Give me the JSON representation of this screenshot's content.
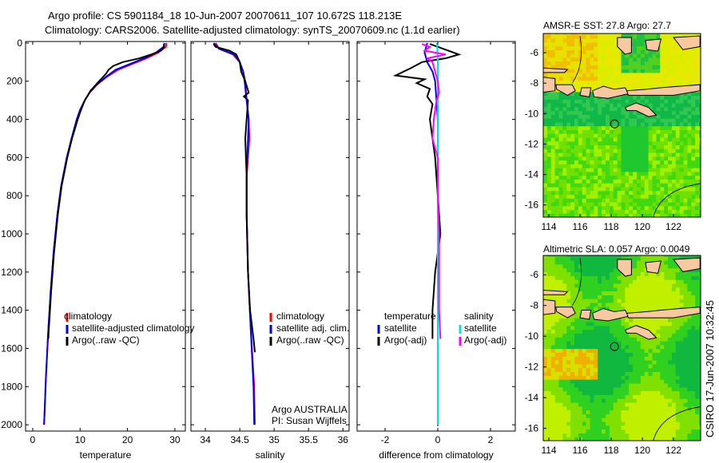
{
  "title_line1": "Argo profile: CS 5901184_18 10-Jun-2007 20070611_107 10.672S 118.213E",
  "title_line2": "Climatology: CARS2006. Satellite-adjusted climatology: synTS_20070609.nc (1.1d earlier)",
  "side_stamp": "CSIRO 17-Jun-2007 10:32:45",
  "colors": {
    "climatology": "#ff0000",
    "satellite": "#0000ff",
    "argo": "#000000",
    "sal_satellite": "#00e0e0",
    "sal_argo": "#ff00ff",
    "land": "#f8c8a0"
  },
  "chart_data": [
    {
      "type": "line",
      "id": "temperature",
      "xlabel": "temperature",
      "ylabel": "",
      "xlim": [
        -1.5,
        32.2
      ],
      "ylim": [
        -8,
        2033
      ],
      "y_reversed": true,
      "xticks": [
        0,
        10,
        20,
        30
      ],
      "yticks": [
        0,
        200,
        400,
        600,
        800,
        1000,
        1200,
        1400,
        1600,
        1800,
        2000
      ],
      "show_ytick_labels": true,
      "legend": [
        "climatology",
        "satellite-adjusted climatology",
        "Argo(..raw -QC)"
      ],
      "series": [
        {
          "name": "climatology",
          "color": "#ff0000",
          "y": [
            0,
            20,
            50,
            80,
            110,
            140,
            180,
            220,
            260,
            300,
            350,
            400,
            500,
            600,
            750,
            900,
            1100,
            1300,
            1500,
            1750,
            2000
          ],
          "x": [
            28.2,
            28.1,
            26.5,
            24,
            21,
            18,
            15.5,
            13.5,
            12,
            11,
            10,
            9.3,
            8.2,
            7.2,
            6,
            5.2,
            4.4,
            3.8,
            3.3,
            2.8,
            2.4
          ]
        },
        {
          "name": "satellite-adjusted climatology",
          "color": "#0000ff",
          "y": [
            0,
            20,
            50,
            80,
            110,
            140,
            180,
            220,
            260,
            300,
            350,
            400,
            500,
            600,
            750,
            900,
            1100,
            1300,
            1500,
            1750,
            2000
          ],
          "x": [
            27.8,
            27.6,
            26,
            23.5,
            20.5,
            17.5,
            15.3,
            13.4,
            12,
            11,
            10,
            9.3,
            8.2,
            7.2,
            6,
            5.2,
            4.4,
            3.8,
            3.3,
            2.8,
            2.4
          ]
        },
        {
          "name": "Argo(..raw -QC)",
          "color": "#000000",
          "y": [
            5,
            20,
            40,
            60,
            80,
            100,
            120,
            140,
            160,
            200,
            250,
            300,
            350,
            400,
            500,
            600,
            750,
            900,
            1100,
            1300,
            1500,
            1550
          ],
          "x": [
            27.7,
            27.7,
            27,
            25,
            22.5,
            19,
            17,
            16,
            15.5,
            14,
            12.2,
            11,
            10.2,
            9.5,
            8.3,
            7.3,
            6.1,
            5.3,
            4.5,
            3.9,
            3.4,
            3.3
          ]
        }
      ]
    },
    {
      "type": "line",
      "id": "salinity",
      "xlabel": "salinity",
      "xlim": [
        33.79,
        36.09
      ],
      "ylim": [
        -8,
        2033
      ],
      "y_reversed": true,
      "xticks": [
        34,
        34.5,
        35,
        35.5,
        36
      ],
      "yticks": [
        0,
        200,
        400,
        600,
        800,
        1000,
        1200,
        1400,
        1600,
        1800,
        2000
      ],
      "show_ytick_labels": false,
      "legend": [
        "climatology",
        "satellite adj. clim.",
        "Argo(..raw -QC)"
      ],
      "annotation": [
        "Argo AUSTRALIA",
        "PI: Susan Wijffels"
      ],
      "series": [
        {
          "name": "climatology",
          "color": "#ff0000",
          "y": [
            0,
            30,
            60,
            100,
            150,
            200,
            300,
            400,
            500,
            700,
            900,
            1200,
            1500,
            1800,
            2000
          ],
          "x": [
            34.15,
            34.2,
            34.4,
            34.5,
            34.55,
            34.58,
            34.6,
            34.63,
            34.64,
            34.6,
            34.6,
            34.62,
            34.66,
            34.71,
            34.72
          ]
        },
        {
          "name": "satellite adj. clim.",
          "color": "#0000ff",
          "y": [
            0,
            30,
            60,
            100,
            150,
            200,
            300,
            400,
            500,
            700,
            900,
            1200,
            1500,
            1800,
            2000
          ],
          "x": [
            34.12,
            34.2,
            34.42,
            34.5,
            34.55,
            34.57,
            34.6,
            34.63,
            34.62,
            34.6,
            34.6,
            34.62,
            34.66,
            34.7,
            34.71
          ]
        },
        {
          "name": "Argo(..raw -QC)",
          "color": "#000000",
          "y": [
            5,
            20,
            40,
            60,
            100,
            150,
            200,
            260,
            280,
            300,
            400,
            500,
            700,
            900,
            1200,
            1400,
            1550,
            1620
          ],
          "x": [
            34.12,
            34.15,
            34.35,
            34.45,
            34.5,
            34.52,
            34.58,
            34.63,
            34.56,
            34.62,
            34.6,
            34.58,
            34.6,
            34.6,
            34.62,
            34.65,
            34.7,
            34.72
          ]
        }
      ]
    },
    {
      "type": "line",
      "id": "difference",
      "xlabel": "difference from climatology",
      "xlim": [
        -3.06,
        2.94
      ],
      "ylim": [
        -8,
        2033
      ],
      "y_reversed": true,
      "xticks": [
        -2,
        0,
        2
      ],
      "yticks": [
        0,
        200,
        400,
        600,
        800,
        1000,
        1200,
        1400,
        1600,
        1800,
        2000
      ],
      "show_ytick_labels": false,
      "legend_left": [
        "temperature",
        "satellite",
        "Argo(-adj)"
      ],
      "legend_right": [
        "salinity",
        "satellite",
        "Argo(-adj)"
      ],
      "series": [
        {
          "name": "temperature satellite",
          "color": "#0000ff",
          "y": [
            0,
            50,
            100,
            150,
            200,
            400,
            1000,
            2000
          ],
          "x": [
            -0.4,
            -0.5,
            -0.4,
            -0.2,
            -0.1,
            0,
            0,
            0
          ]
        },
        {
          "name": "temperature Argo(-adj)",
          "color": "#000000",
          "y": [
            5,
            30,
            60,
            80,
            100,
            130,
            150,
            170,
            190,
            210,
            240,
            280,
            320,
            400,
            500,
            600,
            800,
            1000,
            1200,
            1400,
            1550
          ],
          "x": [
            -0.3,
            0.2,
            0.8,
            0.3,
            -0.6,
            -1.0,
            -1.3,
            -1.6,
            -0.5,
            -0.8,
            -0.3,
            -0.4,
            -0.2,
            -0.3,
            -0.2,
            -0.1,
            0,
            0.1,
            -0.1,
            -0.2,
            -0.2
          ]
        },
        {
          "name": "salinity satellite",
          "color": "#00e0e0",
          "y": [
            0,
            100,
            200,
            400,
            800,
            1200,
            2000
          ],
          "x": [
            -0.03,
            0,
            0,
            0,
            0,
            0,
            0
          ]
        },
        {
          "name": "salinity Argo(-adj)",
          "color": "#ff00ff",
          "y": [
            5,
            20,
            40,
            60,
            80,
            100,
            150,
            200,
            260,
            300,
            400,
            500,
            600,
            800,
            1000,
            1400,
            1550
          ],
          "x": [
            -0.6,
            -0.3,
            -0.5,
            0.3,
            -0.4,
            -0.2,
            -0.1,
            0,
            0.05,
            -0.05,
            -0.15,
            -0.2,
            0,
            0,
            0.05,
            0.05,
            0.1
          ]
        }
      ]
    },
    {
      "type": "heatmap",
      "id": "sst_map",
      "title": "AMSR-E SST: 27.8  Argo: 27.7",
      "xlim": [
        113.64,
        123.74
      ],
      "ylim": [
        -16.8,
        -4.74
      ],
      "xticks": [
        114,
        116,
        118,
        120,
        122
      ],
      "yticks": [
        -6,
        -8,
        -10,
        -12,
        -14,
        -16
      ],
      "argo_position": [
        118.213,
        -10.672
      ]
    },
    {
      "type": "heatmap",
      "id": "sla_map",
      "title": "Altimetric SLA: 0.057  Argo: 0.0049",
      "xlim": [
        113.64,
        123.74
      ],
      "ylim": [
        -16.8,
        -4.74
      ],
      "xticks": [
        114,
        116,
        118,
        120,
        122
      ],
      "yticks": [
        -6,
        -8,
        -10,
        -12,
        -14,
        -16
      ],
      "argo_position": [
        118.213,
        -10.672
      ]
    }
  ],
  "land": [
    [
      [
        113.6,
        -7.6
      ],
      [
        114.4,
        -7.7
      ],
      [
        114.4,
        -8.5
      ],
      [
        113.6,
        -8.6
      ]
    ],
    [
      [
        113.6,
        -7.0
      ],
      [
        115.2,
        -7.1
      ],
      [
        115.0,
        -7.3
      ],
      [
        113.6,
        -7.3
      ]
    ],
    [
      [
        114.45,
        -8.1
      ],
      [
        115.5,
        -8.1
      ],
      [
        115.7,
        -8.5
      ],
      [
        115.2,
        -8.8
      ],
      [
        114.5,
        -8.4
      ]
    ],
    [
      [
        116.1,
        -8.3
      ],
      [
        116.7,
        -8.3
      ],
      [
        116.6,
        -8.9
      ],
      [
        116.0,
        -8.8
      ]
    ],
    [
      [
        116.8,
        -8.5
      ],
      [
        117.5,
        -8.2
      ],
      [
        118.2,
        -8.4
      ],
      [
        118.9,
        -8.3
      ],
      [
        119.1,
        -8.7
      ],
      [
        117.8,
        -9.0
      ],
      [
        116.9,
        -8.9
      ]
    ],
    [
      [
        119.0,
        -8.5
      ],
      [
        120.3,
        -8.4
      ],
      [
        121.2,
        -8.3
      ],
      [
        122.4,
        -8.2
      ],
      [
        123.7,
        -8.1
      ],
      [
        123.7,
        -8.5
      ],
      [
        122,
        -8.8
      ],
      [
        120.4,
        -8.8
      ],
      [
        119.1,
        -8.8
      ]
    ],
    [
      [
        118.9,
        -9.6
      ],
      [
        119.6,
        -9.3
      ],
      [
        120.4,
        -9.6
      ],
      [
        120.9,
        -10.1
      ],
      [
        120.4,
        -10.2
      ],
      [
        119.6,
        -9.8
      ],
      [
        119.0,
        -9.8
      ]
    ],
    [
      [
        118.4,
        -5.0
      ],
      [
        119.3,
        -5.0
      ],
      [
        119.3,
        -6.0
      ],
      [
        118.9,
        -6.1
      ],
      [
        118.4,
        -5.6
      ]
    ],
    [
      [
        120.2,
        -5.2
      ],
      [
        121.2,
        -5.1
      ],
      [
        121.0,
        -5.9
      ],
      [
        120.3,
        -5.8
      ]
    ],
    [
      [
        122.0,
        -5.0
      ],
      [
        123.7,
        -4.9
      ],
      [
        123.7,
        -5.6
      ],
      [
        122.6,
        -5.8
      ]
    ]
  ]
}
